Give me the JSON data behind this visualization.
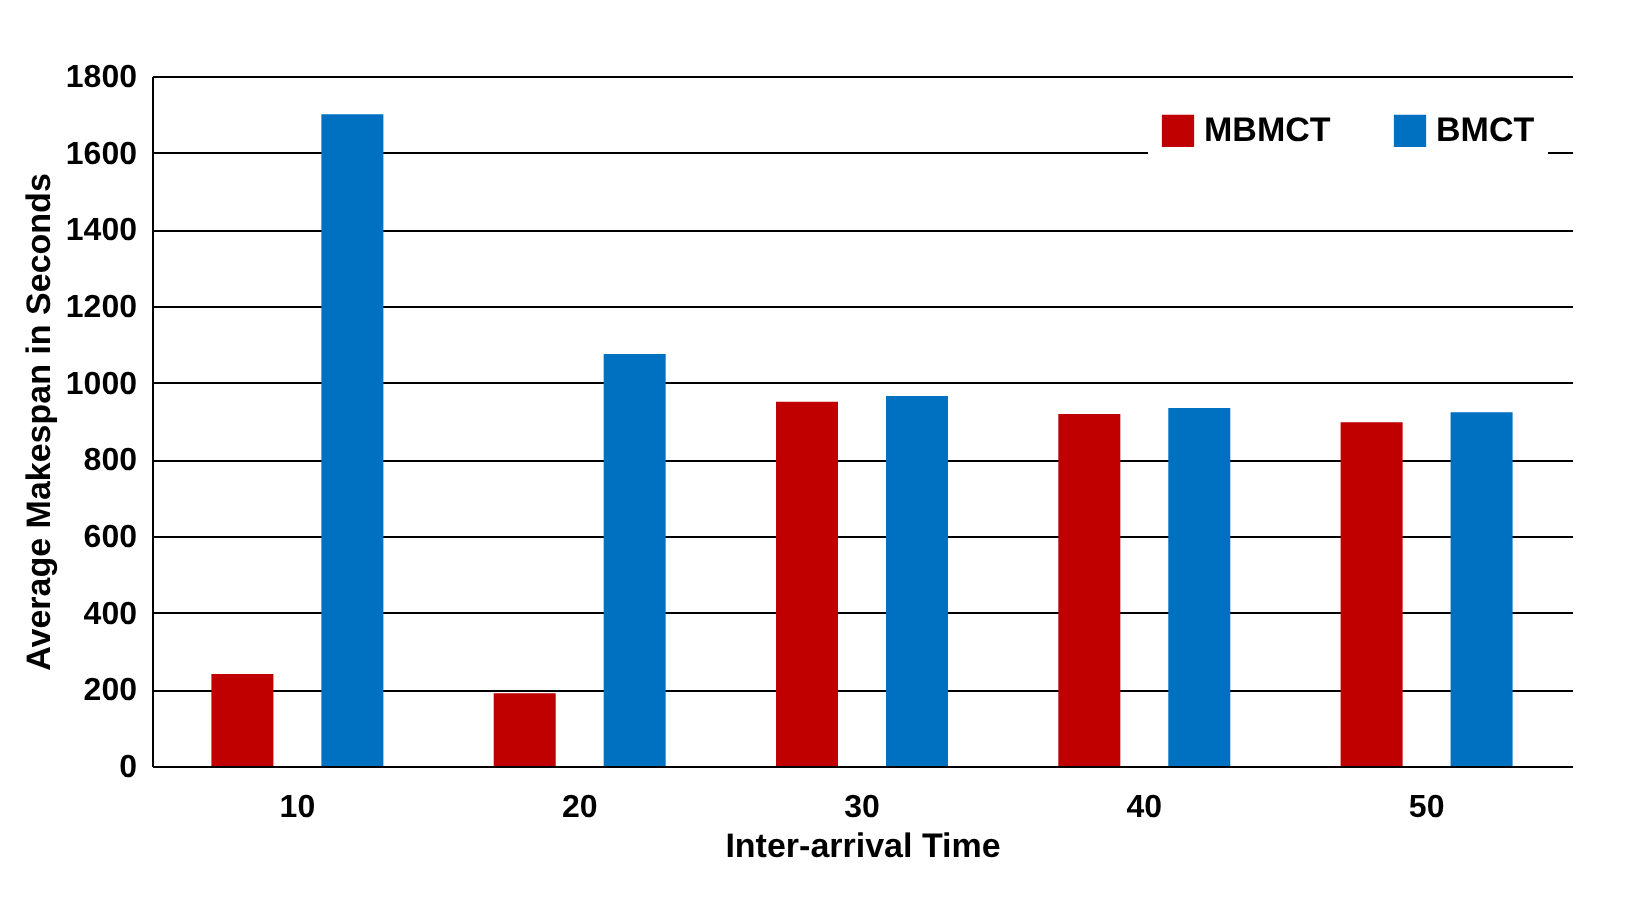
{
  "chart_data": {
    "type": "bar",
    "xlabel": "Inter-arrival Time",
    "ylabel": "Average Makespan in Seconds",
    "categories": [
      "10",
      "20",
      "30",
      "40",
      "50"
    ],
    "series": [
      {
        "name": "MBMCT",
        "color": "#c00000",
        "values": [
          240,
          190,
          950,
          918,
          897
        ]
      },
      {
        "name": "BMCT",
        "color": "#0070c0",
        "values": [
          1700,
          1075,
          965,
          934,
          923
        ]
      }
    ],
    "ylim": [
      0,
      1800
    ],
    "yticks": [
      0,
      200,
      400,
      600,
      800,
      1000,
      1200,
      1400,
      1600,
      1800
    ],
    "grid": "y",
    "legend": "top right"
  }
}
